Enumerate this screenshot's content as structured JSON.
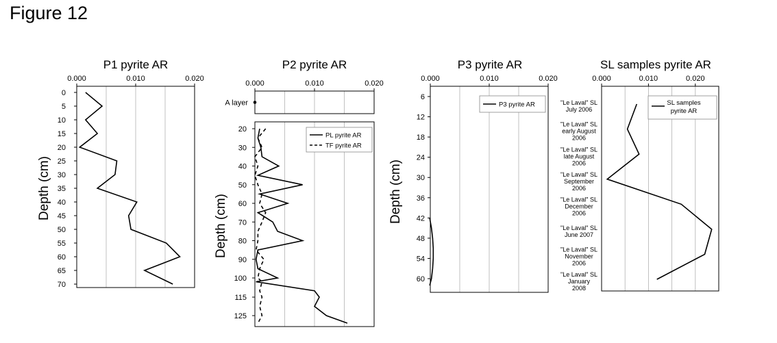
{
  "figure_title": "Figure 12",
  "chart_data": [
    {
      "type": "line",
      "title": "P1 pyrite AR",
      "ylabel": "Depth (cm)",
      "xlim": [
        0,
        0.02
      ],
      "ylim": [
        0,
        70
      ],
      "x_ticks": [
        "0.000",
        "0.010",
        "0.020"
      ],
      "y_ticks": [
        "0",
        "5",
        "10",
        "15",
        "20",
        "25",
        "30",
        "35",
        "40",
        "45",
        "50",
        "55",
        "60",
        "65",
        "70"
      ],
      "grid": "vertical",
      "series": [
        {
          "depth": [
            0,
            5,
            10,
            15,
            20,
            25,
            30,
            35,
            40,
            45,
            50,
            55,
            60,
            65,
            70
          ],
          "values": [
            0.0015,
            0.0043,
            0.0015,
            0.0035,
            0.0005,
            0.0068,
            0.0065,
            0.0035,
            0.0102,
            0.0088,
            0.0092,
            0.0152,
            0.0175,
            0.0115,
            0.0163
          ]
        }
      ]
    },
    {
      "type": "line",
      "title": "P2 pyrite AR",
      "ylabel": "Depth (cm)",
      "xlim": [
        0,
        0.02
      ],
      "x_ticks": [
        "0.000",
        "0.010",
        "0.020"
      ],
      "grid": "vertical",
      "top_panel": {
        "label": "A layer",
        "values": [
          0.0
        ]
      },
      "y_ticks": [
        "20",
        "30",
        "40",
        "50",
        "60",
        "70",
        "80",
        "90",
        "100",
        "115",
        "125"
      ],
      "legend": "top-right",
      "series": [
        {
          "name": "PL pyrite AR",
          "style": "solid",
          "depth": [
            20,
            25,
            30,
            35,
            40,
            45,
            50,
            55,
            60,
            65,
            70,
            75,
            80,
            85,
            90,
            95,
            100,
            103,
            110,
            115,
            120,
            125,
            130
          ],
          "values": [
            0.0008,
            0.0005,
            0.001,
            0.0012,
            0.004,
            0.0005,
            0.008,
            0.0008,
            0.0055,
            0.0005,
            0.003,
            0.0038,
            0.008,
            0.0005,
            0.0002,
            0.0005,
            0.0038,
            0.0002,
            0.01,
            0.0108,
            0.01,
            0.012,
            0.0155
          ]
        },
        {
          "name": "TF pyrite AR",
          "style": "dashed",
          "depth": [
            20,
            25,
            30,
            35,
            40,
            45,
            50,
            55,
            60,
            65,
            70,
            75,
            80,
            85,
            90,
            95,
            100,
            103,
            110,
            115,
            120,
            125,
            130
          ],
          "values": [
            0.0018,
            0.0005,
            0.0012,
            0.0,
            0.0005,
            0.0,
            0.0005,
            0.0012,
            0.0008,
            0.0018,
            0.0012,
            0.0005,
            0.0005,
            0.0002,
            0.0015,
            0.0008,
            0.0005,
            0.0012,
            0.0008,
            0.0012,
            0.0008,
            0.0012,
            0.0005
          ]
        }
      ]
    },
    {
      "type": "line",
      "title": "P3 pyrite AR",
      "ylabel": "Depth (cm)",
      "xlim": [
        0,
        0.02
      ],
      "ylim": [
        6,
        64
      ],
      "x_ticks": [
        "0.000",
        "0.010",
        "0.020"
      ],
      "y_ticks": [
        "6",
        "12",
        "18",
        "24",
        "30",
        "36",
        "42",
        "48",
        "54",
        "60"
      ],
      "grid": "vertical",
      "legend": "top-right",
      "series": [
        {
          "name": "P3 pyrite AR",
          "depth": [
            42,
            45,
            48,
            51,
            54,
            57,
            60,
            62
          ],
          "values": [
            -0.0001,
            0.0002,
            0.0004,
            0.0005,
            0.0005,
            0.0004,
            0.0002,
            -0.0001
          ]
        }
      ]
    },
    {
      "type": "line",
      "title": "SL samples pyrite AR",
      "xlim": [
        0,
        0.025
      ],
      "x_ticks": [
        "0.000",
        "0.010",
        "0.020"
      ],
      "grid": "vertical",
      "legend": "top-right",
      "categories": [
        "\"Le Laval\" SL\nJuly 2006",
        "\"Le Laval\" SL\nearly August\n2006",
        "\"Le Laval\" SL\nlate August\n2006",
        "\"Le Laval\" SL\nSeptember\n2006",
        "\"Le Laval\" SL\nDecember\n2006",
        "\"Le Laval\" SL\nJune 2007",
        "\"Le Laval\" SL\nNovember\n2006",
        "\"Le Laval\" SL\nJanuary\n2008"
      ],
      "series": [
        {
          "name": "SL samples\npyrite AR",
          "values": [
            0.0075,
            0.0055,
            0.008,
            0.0012,
            0.017,
            0.0235,
            0.022,
            0.0118
          ]
        }
      ]
    }
  ]
}
